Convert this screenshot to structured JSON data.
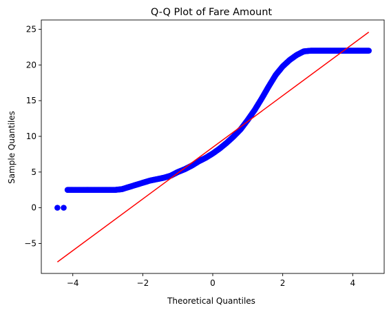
{
  "chart_data": {
    "type": "scatter",
    "title": "Q-Q Plot of Fare Amount",
    "xlabel": "Theoretical Quantiles",
    "ylabel": "Sample Quantiles",
    "xlim": [
      -4.9,
      4.9
    ],
    "ylim": [
      -9.2,
      26.3
    ],
    "x_ticks": [
      -4,
      -2,
      0,
      2,
      4
    ],
    "x_tick_labels": [
      "−4",
      "−2",
      "0",
      "2",
      "4"
    ],
    "y_ticks": [
      -5,
      0,
      5,
      10,
      15,
      20,
      25
    ],
    "y_tick_labels": [
      "−5",
      "0",
      "5",
      "10",
      "15",
      "20",
      "25"
    ],
    "grid": false,
    "series": [
      {
        "kind": "points",
        "color": "#0000ff",
        "x": [
          -4.44,
          -4.26,
          -4.15,
          -4.0,
          -3.8,
          -3.6,
          -3.4,
          -3.2,
          -3.0,
          -2.8,
          -2.6,
          -2.4,
          -2.2,
          -2.0,
          -1.8,
          -1.6,
          -1.4,
          -1.2,
          -1.0,
          -0.8,
          -0.6,
          -0.4,
          -0.2,
          0.0,
          0.2,
          0.4,
          0.6,
          0.8,
          1.0,
          1.2,
          1.4,
          1.6,
          1.8,
          2.0,
          2.2,
          2.4,
          2.6,
          2.8,
          3.0,
          3.2,
          3.4,
          3.6,
          3.8,
          4.0,
          4.2,
          4.46
        ],
        "y": [
          0.0,
          0.0,
          2.5,
          2.5,
          2.5,
          2.5,
          2.5,
          2.5,
          2.5,
          2.5,
          2.6,
          2.9,
          3.2,
          3.5,
          3.8,
          4.0,
          4.2,
          4.5,
          5.0,
          5.4,
          5.9,
          6.5,
          7.0,
          7.6,
          8.3,
          9.1,
          10.0,
          11.0,
          12.3,
          13.7,
          15.3,
          17.0,
          18.6,
          19.8,
          20.7,
          21.4,
          21.9,
          22.0,
          22.0,
          22.0,
          22.0,
          22.0,
          22.0,
          22.0,
          22.0,
          22.0
        ]
      },
      {
        "kind": "line",
        "color": "#ff0000",
        "x": [
          -4.44,
          4.46
        ],
        "y": [
          -7.6,
          24.6
        ]
      }
    ]
  }
}
